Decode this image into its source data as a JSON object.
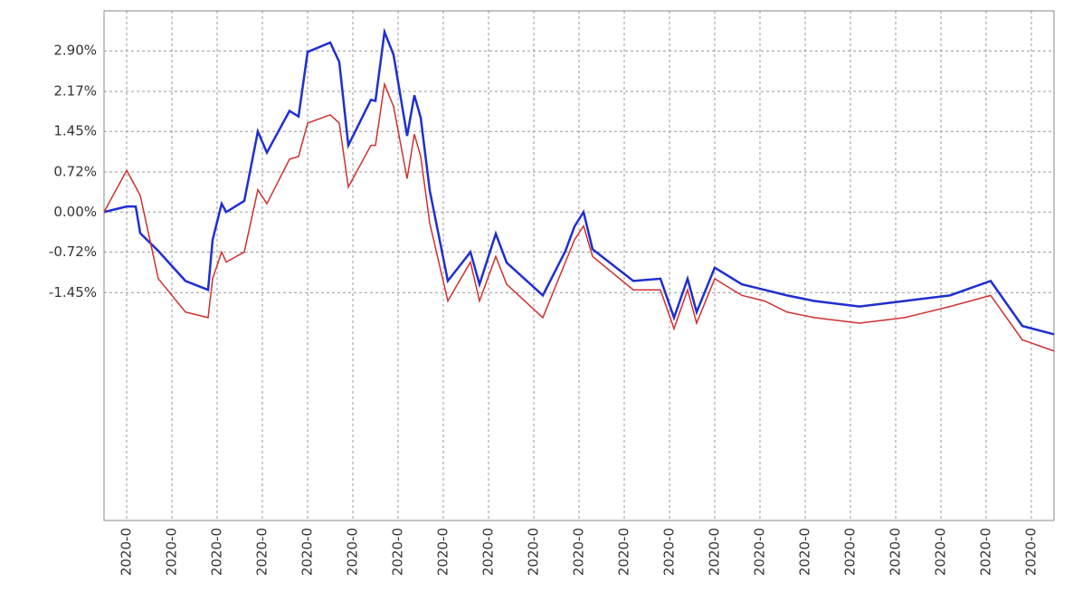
{
  "chart_data": {
    "type": "line",
    "x": [
      0,
      2.5,
      3.5,
      4,
      6,
      9,
      11.5,
      12,
      13,
      13.5,
      15.5,
      17,
      18,
      20.5,
      21.5,
      22.5,
      25,
      26,
      27,
      29.5,
      30,
      31,
      32,
      33.5,
      34.3,
      35,
      36,
      38,
      40.5,
      41.5,
      43.3,
      44.5,
      48.5,
      51,
      52,
      53,
      54,
      58.5,
      61.5,
      63,
      64.5,
      65.5,
      67.5,
      70.5,
      73,
      75.5,
      78.5,
      83.5,
      88.5,
      93.5,
      98,
      101.5,
      105
    ],
    "series": [
      {
        "name": "blue",
        "color": "#1f2fd0",
        "width": 2.5,
        "values": [
          0,
          0.1,
          0.1,
          -0.38,
          -0.7,
          -1.24,
          -1.4,
          -0.5,
          0.15,
          0,
          0.2,
          1.45,
          1.07,
          1.82,
          1.72,
          2.88,
          3.05,
          2.7,
          1.2,
          2.02,
          2.0,
          3.24,
          2.83,
          1.37,
          2.1,
          1.7,
          0.39,
          -1.24,
          -0.72,
          -1.3,
          -0.39,
          -0.91,
          -1.5,
          -0.7,
          -0.26,
          0,
          -0.67,
          -1.24,
          -1.2,
          -1.9,
          -1.2,
          -1.8,
          -1.0,
          -1.3,
          -1.4,
          -1.5,
          -1.6,
          -1.7,
          -1.6,
          -1.5,
          -1.24,
          -2.05,
          -2.2
        ]
      },
      {
        "name": "red",
        "color": "#d03030",
        "width": 1.5,
        "values": [
          0,
          0.75,
          0.45,
          0.3,
          -1.2,
          -1.8,
          -1.9,
          -1.2,
          -0.72,
          -0.9,
          -0.72,
          0.4,
          0.15,
          0.95,
          1.0,
          1.6,
          1.75,
          1.6,
          0.45,
          1.2,
          1.2,
          2.3,
          1.9,
          0.6,
          1.4,
          1.0,
          -0.2,
          -1.6,
          -0.9,
          -1.6,
          -0.8,
          -1.3,
          -1.9,
          -0.9,
          -0.5,
          -0.25,
          -0.8,
          -1.4,
          -1.4,
          -2.1,
          -1.4,
          -2.0,
          -1.2,
          -1.5,
          -1.6,
          -1.8,
          -1.9,
          -2.0,
          -1.9,
          -1.7,
          -1.5,
          -2.3,
          -2.5
        ]
      }
    ],
    "xlim": [
      0,
      105
    ],
    "xticks": [
      {
        "value": 2.5,
        "label": "2020-0"
      },
      {
        "value": 7.5,
        "label": "2020-0"
      },
      {
        "value": 12.5,
        "label": "2020-0"
      },
      {
        "value": 17.5,
        "label": "2020-0"
      },
      {
        "value": 22.5,
        "label": "2020-0"
      },
      {
        "value": 27.5,
        "label": "2020-0"
      },
      {
        "value": 32.5,
        "label": "2020-0"
      },
      {
        "value": 37.5,
        "label": "2020-0"
      },
      {
        "value": 42.5,
        "label": "2020-0"
      },
      {
        "value": 47.5,
        "label": "2020-0"
      },
      {
        "value": 52.5,
        "label": "2020-0"
      },
      {
        "value": 57.5,
        "label": "2020-0"
      },
      {
        "value": 62.5,
        "label": "2020-0"
      },
      {
        "value": 67.5,
        "label": "2020-0"
      },
      {
        "value": 72.5,
        "label": "2020-0"
      },
      {
        "value": 77.5,
        "label": "2020-0"
      },
      {
        "value": 82.5,
        "label": "2020-0"
      },
      {
        "value": 87.5,
        "label": "2020-0"
      },
      {
        "value": 92.5,
        "label": "2020-0"
      },
      {
        "value": 97.5,
        "label": "2020-0"
      },
      {
        "value": 102.5,
        "label": "2020-0"
      }
    ],
    "ylim": [
      -5.55,
      3.62
    ],
    "yticks": [
      {
        "value": 2.9,
        "label": "2.90%"
      },
      {
        "value": 2.17,
        "label": "2.17%"
      },
      {
        "value": 1.45,
        "label": "1.45%"
      },
      {
        "value": 0.72,
        "label": "0.72%"
      },
      {
        "value": 0,
        "label": "0.00%"
      },
      {
        "value": -0.72,
        "label": "-0.72%"
      },
      {
        "value": -1.45,
        "label": "-1.45%"
      }
    ],
    "grid": true
  }
}
